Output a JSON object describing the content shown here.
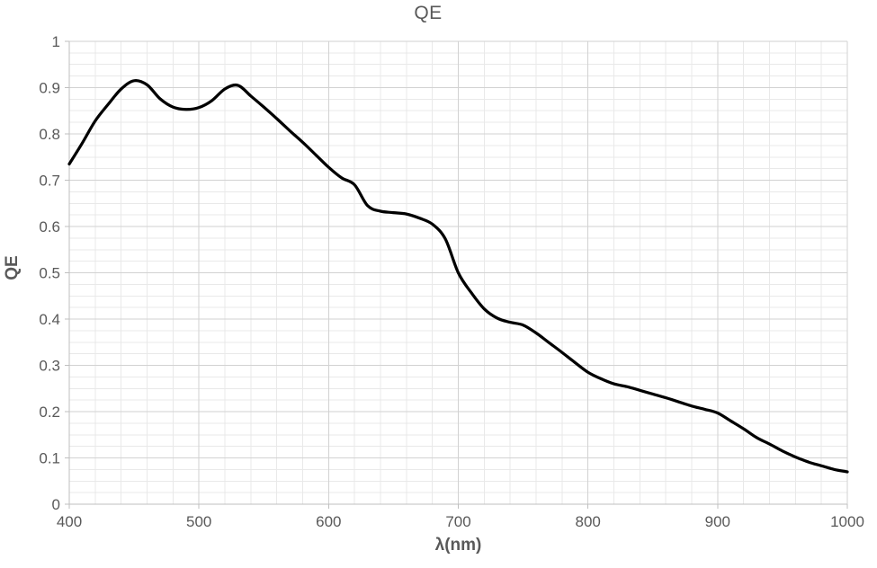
{
  "chart_data": {
    "type": "line",
    "title": "QE",
    "xlabel": "λ(nm)",
    "ylabel": "QE",
    "xlim": [
      400,
      1000
    ],
    "ylim": [
      0,
      1
    ],
    "grid": {
      "major": true,
      "minor": true
    },
    "legend": "none",
    "x_minor_step": 20,
    "y_minor_step": 0.025,
    "x_ticks": {
      "values": [
        400,
        500,
        600,
        700,
        800,
        900,
        1000
      ],
      "labels": [
        "400",
        "500",
        "600",
        "700",
        "800",
        "900",
        "1000"
      ]
    },
    "y_ticks": {
      "values": [
        0,
        0.1,
        0.2,
        0.3,
        0.4,
        0.5,
        0.6,
        0.7,
        0.8,
        0.9,
        1
      ],
      "labels": [
        "0",
        "0.1",
        "0.2",
        "0.3",
        "0.4",
        "0.5",
        "0.6",
        "0.7",
        "0.8",
        "0.9",
        "1"
      ]
    },
    "colors": {
      "line": "#000000",
      "grid_major": "#d2d2d2",
      "grid_minor": "#e9e9e9",
      "axis": "#bfbfbf",
      "text": "#595959"
    },
    "series": [
      {
        "name": "QE",
        "color": "#000000",
        "line_width": 3.25,
        "x": [
          400,
          410,
          420,
          430,
          440,
          450,
          460,
          470,
          480,
          490,
          500,
          510,
          520,
          530,
          540,
          550,
          560,
          570,
          580,
          590,
          600,
          610,
          620,
          630,
          640,
          650,
          660,
          670,
          680,
          690,
          700,
          710,
          720,
          730,
          740,
          750,
          760,
          770,
          780,
          790,
          800,
          810,
          820,
          830,
          840,
          850,
          860,
          870,
          880,
          890,
          900,
          910,
          920,
          930,
          940,
          950,
          960,
          970,
          980,
          990,
          1000
        ],
        "y": [
          0.735,
          0.78,
          0.828,
          0.864,
          0.897,
          0.915,
          0.906,
          0.876,
          0.858,
          0.853,
          0.857,
          0.872,
          0.897,
          0.905,
          0.882,
          0.858,
          0.833,
          0.807,
          0.782,
          0.755,
          0.728,
          0.705,
          0.69,
          0.645,
          0.633,
          0.63,
          0.627,
          0.618,
          0.605,
          0.573,
          0.5,
          0.457,
          0.422,
          0.402,
          0.393,
          0.387,
          0.37,
          0.349,
          0.328,
          0.306,
          0.285,
          0.271,
          0.26,
          0.254,
          0.246,
          0.238,
          0.23,
          0.221,
          0.212,
          0.205,
          0.197,
          0.18,
          0.163,
          0.144,
          0.13,
          0.115,
          0.102,
          0.091,
          0.083,
          0.075,
          0.07
        ]
      }
    ]
  }
}
